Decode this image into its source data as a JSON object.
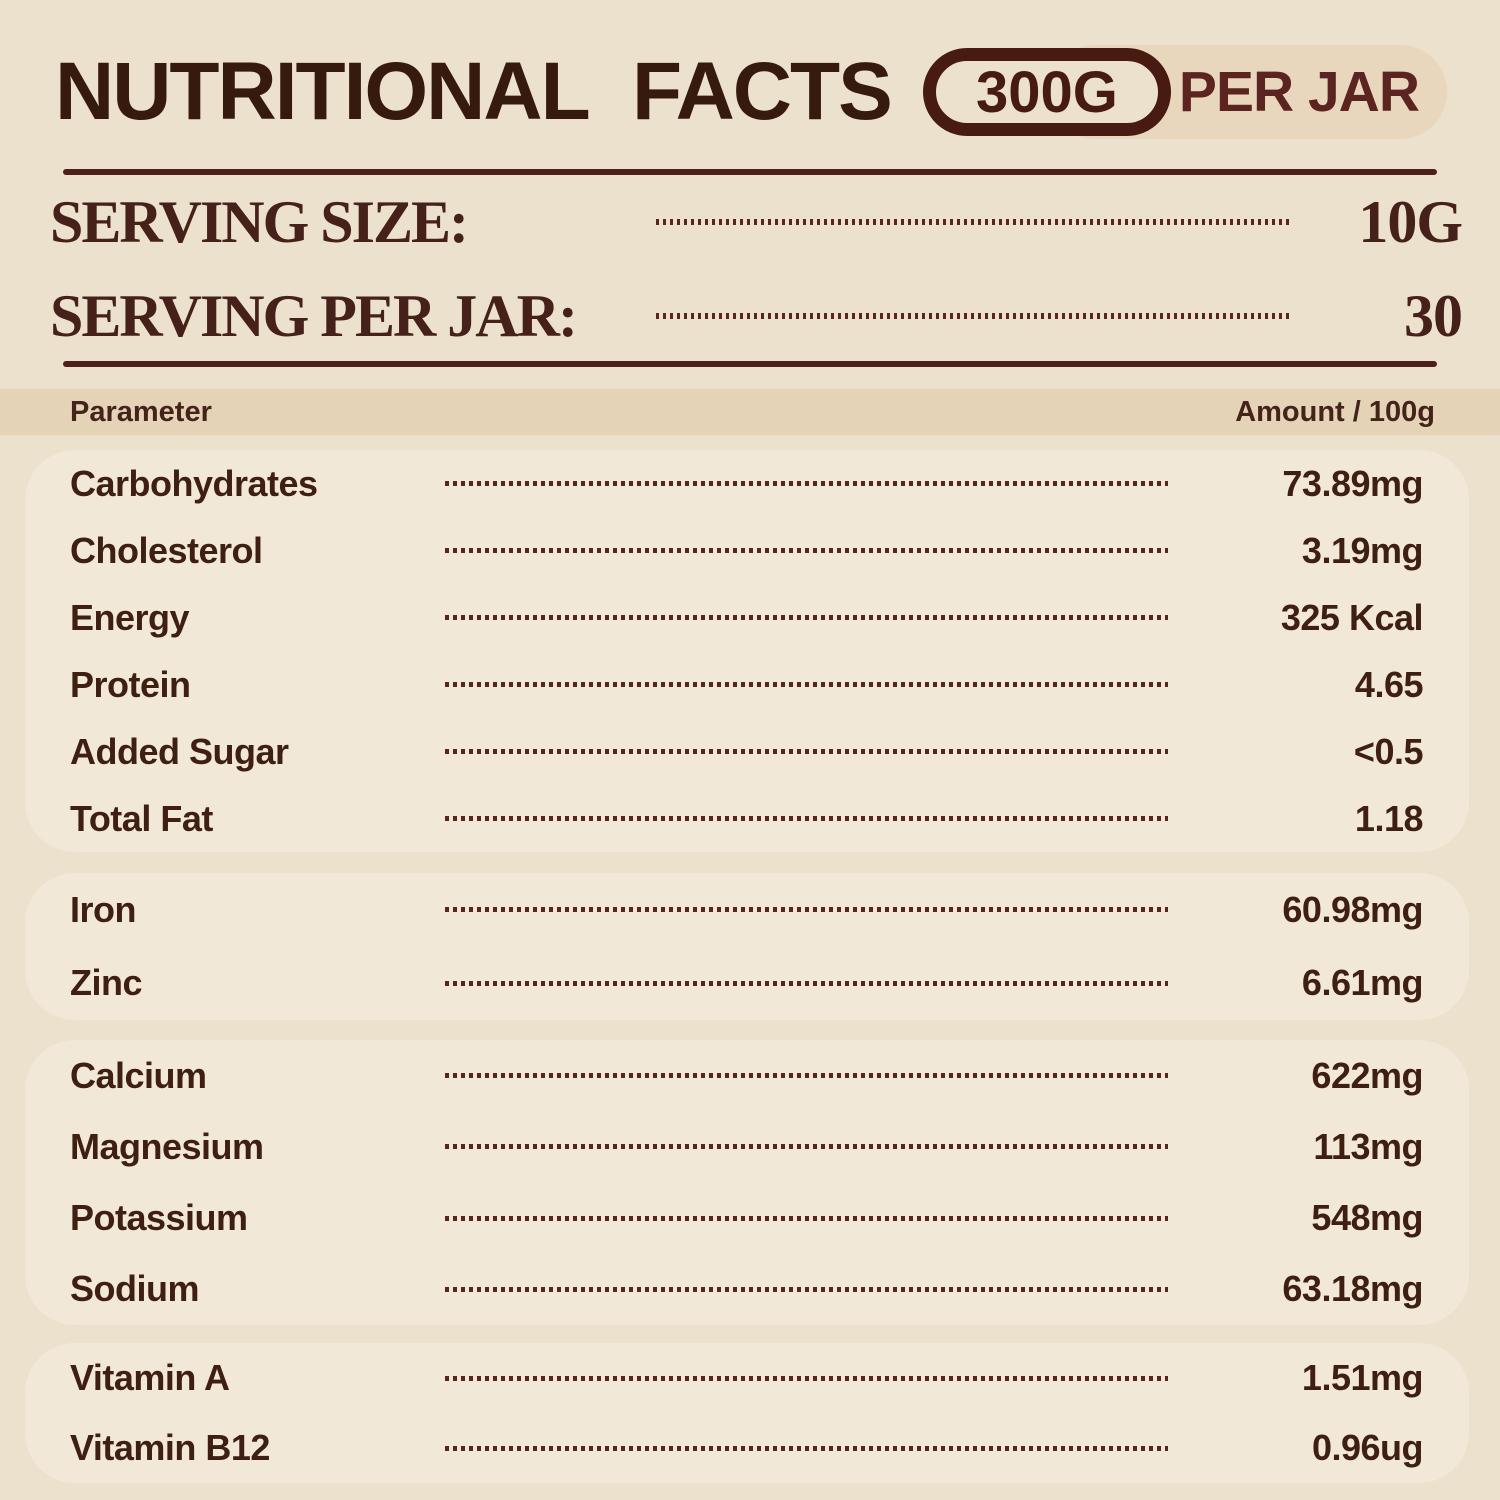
{
  "header": {
    "title": "NUTRITIONAL  FACTS",
    "badge_amount": "300G",
    "badge_suffix": "PER JAR"
  },
  "serving": {
    "rows": [
      {
        "label": "SERVING SIZE:",
        "value": "10G"
      },
      {
        "label": "SERVING PER JAR:",
        "value": "30"
      }
    ]
  },
  "table": {
    "header": {
      "parameter": "Parameter",
      "amount": "Amount / 100g"
    },
    "groups": [
      {
        "rows": [
          {
            "label": "Carbohydrates",
            "value": "73.89mg"
          },
          {
            "label": "Cholesterol",
            "value": "3.19mg"
          },
          {
            "label": "Energy",
            "value": "325 Kcal"
          },
          {
            "label": "Protein",
            "value": "4.65"
          },
          {
            "label": "Added Sugar",
            "value": "<0.5"
          },
          {
            "label": "Total Fat",
            "value": "1.18"
          }
        ]
      },
      {
        "rows": [
          {
            "label": "Iron",
            "value": "60.98mg"
          },
          {
            "label": "Zinc",
            "value": "6.61mg"
          }
        ]
      },
      {
        "rows": [
          {
            "label": "Calcium",
            "value": "622mg"
          },
          {
            "label": "Magnesium",
            "value": "113mg"
          },
          {
            "label": "Potassium",
            "value": "548mg"
          },
          {
            "label": "Sodium",
            "value": "63.18mg"
          }
        ]
      },
      {
        "rows": [
          {
            "label": "Vitamin A",
            "value": "1.51mg"
          },
          {
            "label": "Vitamin B12",
            "value": "0.96ug"
          }
        ]
      }
    ]
  },
  "colors": {
    "page_background": "#ece1cd",
    "card_background": "#f1e8d7",
    "band_background": "#e5d3b7",
    "badge_background": "#e9d7bd",
    "title_text": "#371a0e",
    "maroon_text": "#5c2420",
    "body_text": "#3e1f12",
    "rule": "#4e2019",
    "dot_leader": "#5b241c"
  }
}
